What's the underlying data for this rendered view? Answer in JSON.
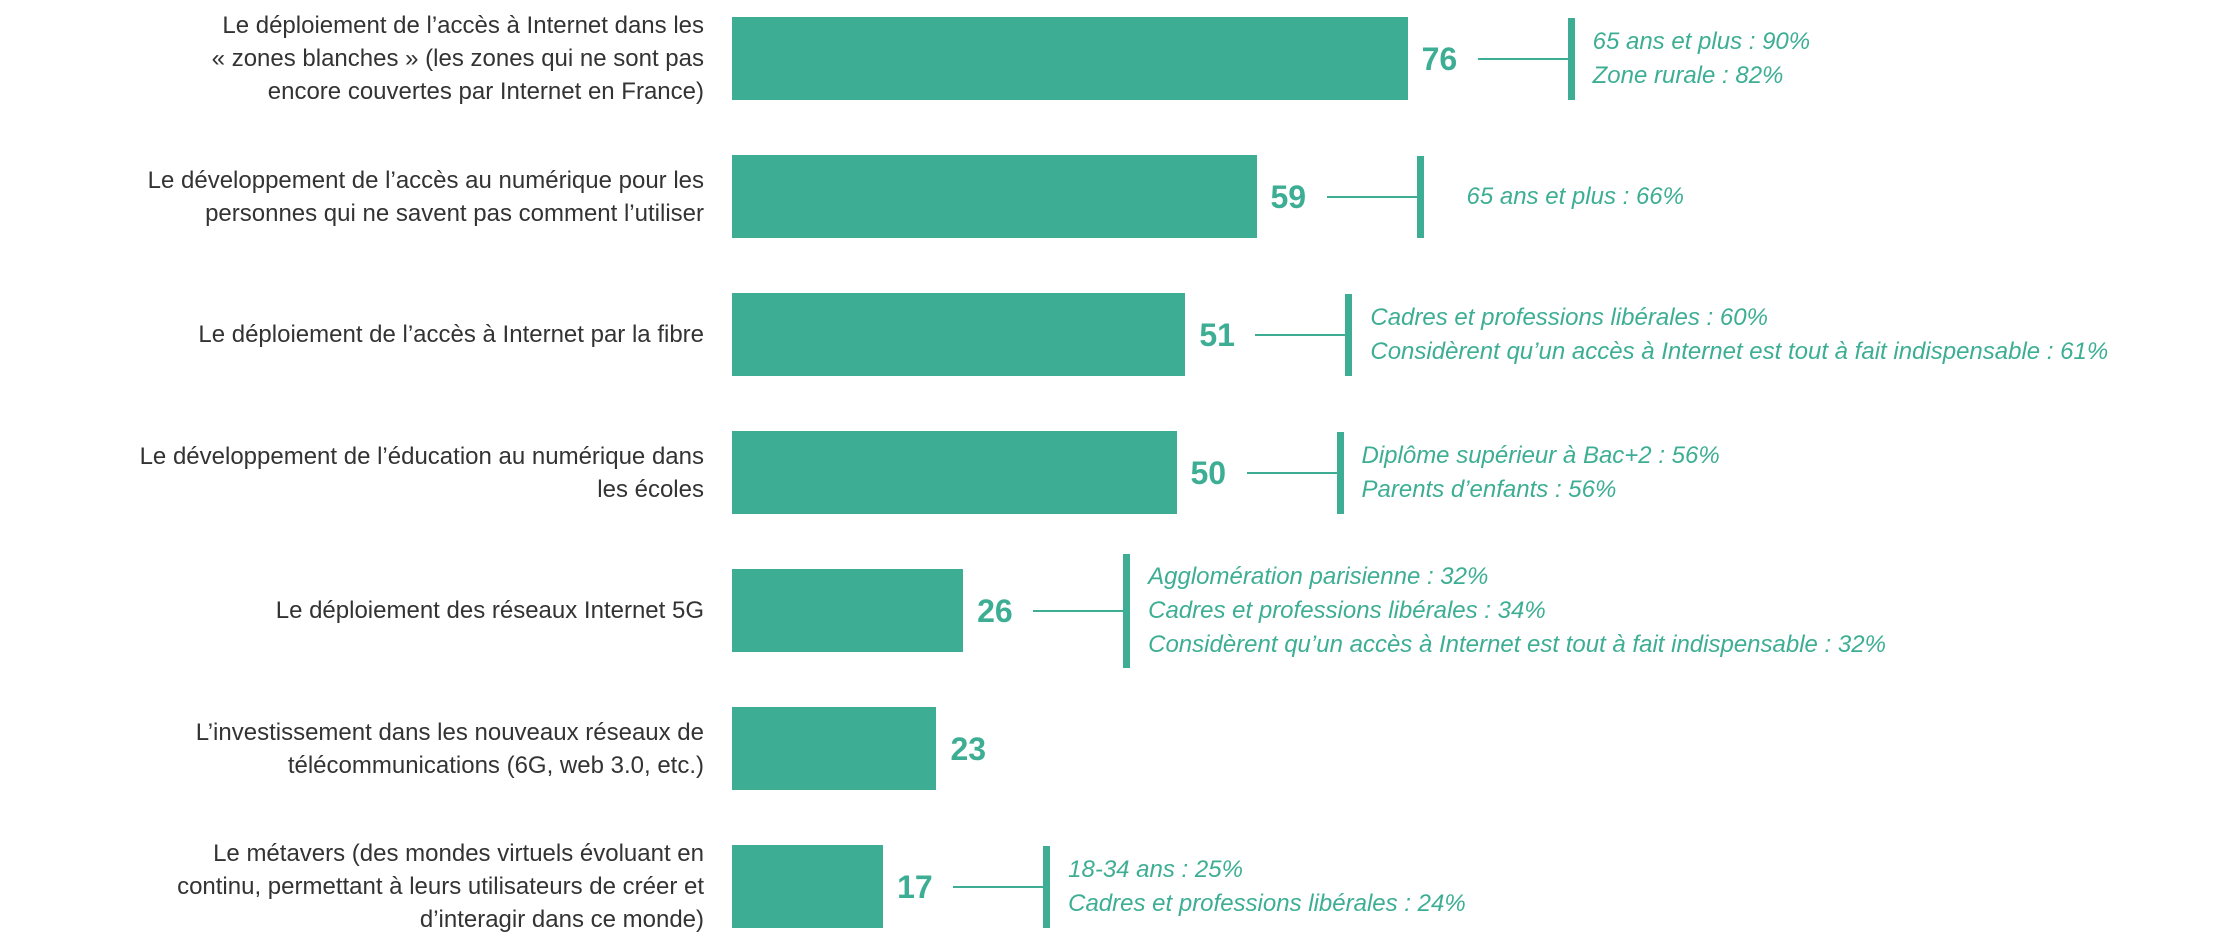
{
  "chart_data": {
    "type": "bar",
    "orientation": "horizontal",
    "color": "#3dae94",
    "categories": [
      "Le déploiement de l’accès à Internet dans les\n« zones blanches » (les zones qui ne sont pas\nencore couvertes par Internet en France)",
      "Le développement de l’accès au numérique pour les\npersonnes qui ne savent pas comment l’utiliser",
      "Le déploiement de l’accès à Internet par la fibre",
      "Le développement de l’éducation au numérique dans\nles écoles",
      "Le déploiement des réseaux Internet 5G",
      "L’investissement dans les nouveaux réseaux de\ntélécommunications (6G, web 3.0, etc.)",
      "Le métavers (des mondes virtuels évoluant en\ncontinu, permettant à leurs utilisateurs de créer et\nd’interagir dans ce monde)"
    ],
    "values": [
      76,
      59,
      51,
      50,
      26,
      23,
      17
    ],
    "annotations": [
      [
        "65 ans et plus : 90%",
        "Zone rurale : 82%"
      ],
      [
        "65 ans et plus : 66%"
      ],
      [
        "Cadres et professions libérales : 60%",
        "Considèrent qu’un accès à Internet est tout à fait indispensable : 61%"
      ],
      [
        "Diplôme supérieur à Bac+2 : 56%",
        "Parents d’enfants : 56%"
      ],
      [
        "Agglomération parisienne : 32%",
        "Cadres et professions libérales : 34%",
        "Considèrent qu’un accès à Internet est tout à fait indispensable : 32%"
      ],
      [],
      [
        "18-34 ans : 25%",
        "Cadres et professions libérales : 24%"
      ]
    ]
  }
}
